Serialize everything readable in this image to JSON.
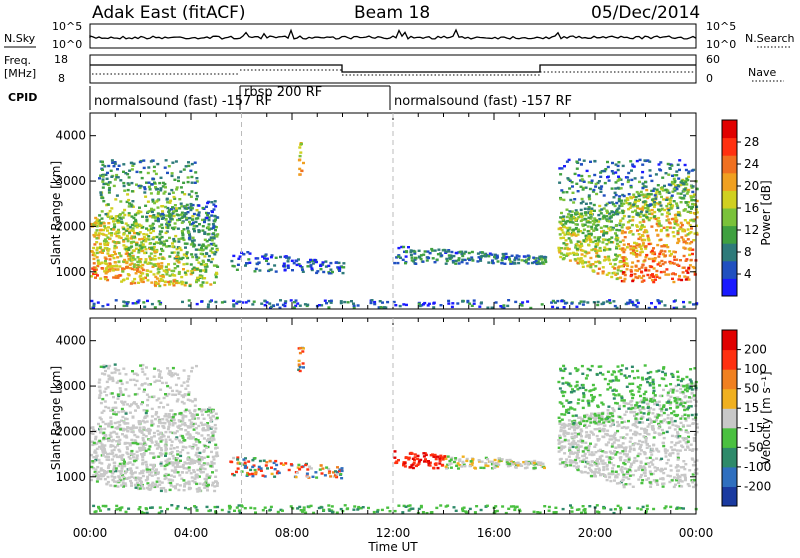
{
  "header": {
    "radar": "Adak East (fitACF)",
    "beam": "Beam 18",
    "date": "05/Dec/2014"
  },
  "summary": {
    "left_label_top": "N.Sky",
    "left_ticks_top": [
      "10^5",
      "10^0"
    ],
    "right_label_top": "N.Search",
    "right_ticks_top": [
      "10^5",
      "10^0"
    ],
    "freq_label_1": "Freq.",
    "freq_label_2": "[MHz]",
    "freq_ticks": [
      "18",
      "8"
    ],
    "nave_label": "Nave",
    "nave_ticks": [
      "60",
      "0"
    ],
    "cpid_label": "CPID",
    "cpid_segments": [
      "normalsound (fast) -157 RF",
      "rbsp 200 RF",
      "normalsound (fast) -157 RF"
    ]
  },
  "chart_data": [
    {
      "type": "heatmap",
      "title": "",
      "ylabel": "Slant Range [km]",
      "xlabel": "",
      "x_tick_labels": [
        "00:00",
        "04:00",
        "08:00",
        "12:00",
        "16:00",
        "20:00",
        "00:00"
      ],
      "xlim_hours": [
        0,
        24
      ],
      "y_tick_labels": [
        "1000",
        "2000",
        "3000",
        "4000"
      ],
      "ylim": [
        180,
        4500
      ],
      "colorbar": {
        "label": "Power [dB]",
        "ticks": [
          "4",
          "8",
          "12",
          "16",
          "20",
          "24",
          "28"
        ],
        "range": [
          0,
          30
        ],
        "colors": [
          "#1a1aff",
          "#2050c0",
          "#2e7a7a",
          "#3fa040",
          "#7ac23a",
          "#d0d020",
          "#f0a020",
          "#f07020",
          "#ff3010",
          "#e00000"
        ]
      }
    },
    {
      "type": "heatmap",
      "title": "",
      "ylabel": "Slant Range [km]",
      "xlabel": "Time UT",
      "x_tick_labels": [
        "00:00",
        "04:00",
        "08:00",
        "12:00",
        "16:00",
        "20:00",
        "00:00"
      ],
      "xlim_hours": [
        0,
        24
      ],
      "y_tick_labels": [
        "1000",
        "2000",
        "3000",
        "4000"
      ],
      "ylim": [
        180,
        4500
      ],
      "colorbar": {
        "label": "Velocity [m s⁻¹]",
        "ticks": [
          "200",
          "100",
          "50",
          "15",
          "-15",
          "-50",
          "-100",
          "-200"
        ],
        "range": [
          -250,
          250
        ],
        "colors": [
          "#1a3aa0",
          "#2f6fbf",
          "#2e8a6a",
          "#4ac040",
          "#c8c8c8",
          "#f0b020",
          "#f08020",
          "#ff3010",
          "#e00000"
        ]
      }
    }
  ]
}
